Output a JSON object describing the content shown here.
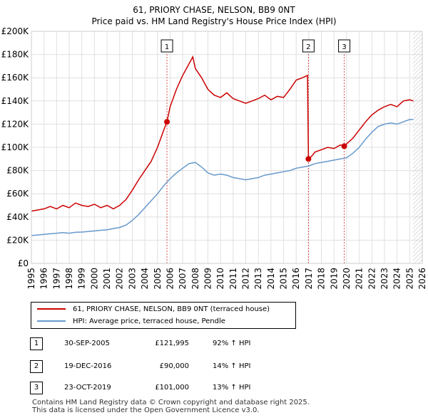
{
  "title_line1": "61, PRIORY CHASE, NELSON, BB9 0NT",
  "title_line2": "Price paid vs. HM Land Registry's House Price Index (HPI)",
  "legend": {
    "property_label": "61, PRIORY CHASE, NELSON, BB9 0NT (terraced house)",
    "hpi_label": "HPI: Average price, terraced house, Pendle"
  },
  "colors": {
    "property": "#cc0000",
    "hpi": "#6699cc",
    "grid": "#e0e0e0",
    "marker_line": "#cc0000",
    "hatch": "#bbbbbb"
  },
  "sales": [
    {
      "num": "1",
      "date": "30-SEP-2005",
      "price": "£121,995",
      "hpi": "92% ↑ HPI"
    },
    {
      "num": "2",
      "date": "19-DEC-2016",
      "price": "£90,000",
      "hpi": "14% ↑ HPI"
    },
    {
      "num": "3",
      "date": "23-OCT-2019",
      "price": "£101,000",
      "hpi": "13% ↑ HPI"
    }
  ],
  "footer": {
    "line1": "Contains HM Land Registry data © Crown copyright and database right 2025.",
    "line2": "This data is licensed under the Open Government Licence v3.0."
  },
  "chart_data": {
    "type": "line",
    "title": "Price paid vs. HM Land Registry's House Price Index (HPI)",
    "xlabel": "",
    "ylabel": "",
    "xlim": [
      1995,
      2026
    ],
    "ylim": [
      0,
      200000
    ],
    "x_ticks": [
      1995,
      1996,
      1997,
      1998,
      1999,
      2000,
      2001,
      2002,
      2003,
      2004,
      2005,
      2006,
      2007,
      2008,
      2009,
      2010,
      2011,
      2012,
      2013,
      2014,
      2015,
      2016,
      2017,
      2018,
      2019,
      2020,
      2021,
      2022,
      2023,
      2024,
      2025,
      2026
    ],
    "x_tick_labels": [
      "1995",
      "1996",
      "1997",
      "1998",
      "1999",
      "2000",
      "2001",
      "2002",
      "2003",
      "2004",
      "2005",
      "2006",
      "2007",
      "2008",
      "2009",
      "2010",
      "2011",
      "2012",
      "2013",
      "2014",
      "2015",
      "2016",
      "2017",
      "2018",
      "2019",
      "2020",
      "2021",
      "2022",
      "2023",
      "2024",
      "2025",
      "2026"
    ],
    "y_ticks": [
      0,
      20000,
      40000,
      60000,
      80000,
      100000,
      120000,
      140000,
      160000,
      180000,
      200000
    ],
    "y_tick_labels": [
      "£0",
      "£20K",
      "£40K",
      "£60K",
      "£80K",
      "£100K",
      "£120K",
      "£140K",
      "£160K",
      "£180K",
      "£200K"
    ],
    "grid": true,
    "hatch_from": 2025.25,
    "series": [
      {
        "name": "61, PRIORY CHASE, NELSON, BB9 0NT (terraced house)",
        "color": "#cc0000",
        "x": [
          1995.0,
          1995.5,
          1996.0,
          1996.5,
          1997.0,
          1997.5,
          1998.0,
          1998.5,
          1999.0,
          1999.5,
          2000.0,
          2000.5,
          2001.0,
          2001.5,
          2002.0,
          2002.5,
          2003.0,
          2003.5,
          2004.0,
          2004.5,
          2005.0,
          2005.5,
          2005.75,
          2006.0,
          2006.5,
          2007.0,
          2007.5,
          2007.8,
          2008.0,
          2008.5,
          2009.0,
          2009.5,
          2010.0,
          2010.5,
          2011.0,
          2011.5,
          2012.0,
          2012.5,
          2013.0,
          2013.5,
          2014.0,
          2014.5,
          2015.0,
          2015.5,
          2016.0,
          2016.5,
          2016.9,
          2016.97,
          2017.2,
          2017.5,
          2018.0,
          2018.5,
          2019.0,
          2019.5,
          2019.81,
          2020.0,
          2020.5,
          2021.0,
          2021.5,
          2022.0,
          2022.5,
          2023.0,
          2023.5,
          2024.0,
          2024.5,
          2025.0,
          2025.3
        ],
        "values": [
          45000,
          46000,
          47000,
          49000,
          47000,
          50000,
          48000,
          52000,
          50000,
          49000,
          51000,
          48000,
          50000,
          47000,
          50000,
          55000,
          63000,
          72000,
          80000,
          88000,
          100000,
          115000,
          121995,
          135000,
          150000,
          162000,
          172000,
          178000,
          168000,
          160000,
          150000,
          145000,
          143000,
          147000,
          142000,
          140000,
          138000,
          140000,
          142000,
          145000,
          141000,
          144000,
          143000,
          150000,
          158000,
          160000,
          162000,
          90000,
          92000,
          96000,
          98000,
          100000,
          99000,
          102000,
          101000,
          103000,
          108000,
          115000,
          122000,
          128000,
          132000,
          135000,
          137000,
          135000,
          140000,
          141000,
          140000
        ]
      },
      {
        "name": "HPI: Average price, terraced house, Pendle",
        "color": "#6699cc",
        "x": [
          1995.0,
          1995.5,
          1996.0,
          1996.5,
          1997.0,
          1997.5,
          1998.0,
          1998.5,
          1999.0,
          1999.5,
          2000.0,
          2000.5,
          2001.0,
          2001.5,
          2002.0,
          2002.5,
          2003.0,
          2003.5,
          2004.0,
          2004.5,
          2005.0,
          2005.5,
          2006.0,
          2006.5,
          2007.0,
          2007.5,
          2008.0,
          2008.5,
          2009.0,
          2009.5,
          2010.0,
          2010.5,
          2011.0,
          2011.5,
          2012.0,
          2012.5,
          2013.0,
          2013.5,
          2014.0,
          2014.5,
          2015.0,
          2015.5,
          2016.0,
          2016.5,
          2017.0,
          2017.5,
          2018.0,
          2018.5,
          2019.0,
          2019.5,
          2020.0,
          2020.5,
          2021.0,
          2021.5,
          2022.0,
          2022.5,
          2023.0,
          2023.5,
          2024.0,
          2024.5,
          2025.0,
          2025.3
        ],
        "values": [
          24000,
          24500,
          25000,
          25500,
          26000,
          26500,
          26000,
          26800,
          27000,
          27500,
          28000,
          28500,
          29000,
          30000,
          31000,
          33000,
          37000,
          42000,
          48000,
          54000,
          60000,
          67000,
          73000,
          78000,
          82000,
          86000,
          87000,
          83000,
          78000,
          76000,
          77000,
          76000,
          74000,
          73000,
          72000,
          73000,
          74000,
          76000,
          77000,
          78000,
          79000,
          80000,
          82000,
          83000,
          84000,
          86000,
          87000,
          88000,
          89000,
          90000,
          91000,
          95000,
          100000,
          107000,
          113000,
          118000,
          120000,
          121000,
          120000,
          122000,
          124000,
          124000
        ]
      }
    ],
    "sale_markers": [
      {
        "label": "1",
        "x": 2005.75,
        "value": 121995
      },
      {
        "label": "2",
        "x": 2016.97,
        "value": 90000
      },
      {
        "label": "3",
        "x": 2019.81,
        "value": 101000
      }
    ]
  }
}
